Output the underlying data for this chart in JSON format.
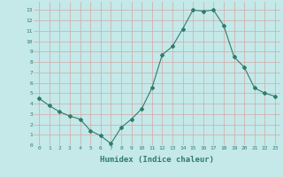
{
  "x": [
    0,
    1,
    2,
    3,
    4,
    5,
    6,
    7,
    8,
    9,
    10,
    11,
    12,
    13,
    14,
    15,
    16,
    17,
    18,
    19,
    20,
    21,
    22,
    23
  ],
  "y": [
    4.5,
    3.8,
    3.2,
    2.8,
    2.5,
    1.4,
    0.9,
    0.15,
    1.7,
    2.5,
    3.5,
    5.5,
    8.7,
    9.5,
    11.2,
    13.0,
    12.9,
    13.0,
    11.5,
    8.5,
    7.5,
    5.5,
    5.0,
    4.7
  ],
  "xlabel": "Humidex (Indice chaleur)",
  "line_color": "#2e7d6e",
  "marker": "D",
  "marker_size": 2.0,
  "bg_color": "#c5e8e8",
  "grid_color": "#d4a8a8",
  "xlim": [
    -0.5,
    23.5
  ],
  "ylim": [
    0,
    13.8
  ],
  "xtick_labels": [
    "0",
    "1",
    "2",
    "3",
    "4",
    "5",
    "6",
    "7",
    "8",
    "9",
    "10",
    "11",
    "12",
    "13",
    "14",
    "15",
    "16",
    "17",
    "18",
    "19",
    "20",
    "21",
    "22",
    "23"
  ],
  "ytick_values": [
    0,
    1,
    2,
    3,
    4,
    5,
    6,
    7,
    8,
    9,
    10,
    11,
    12,
    13
  ]
}
